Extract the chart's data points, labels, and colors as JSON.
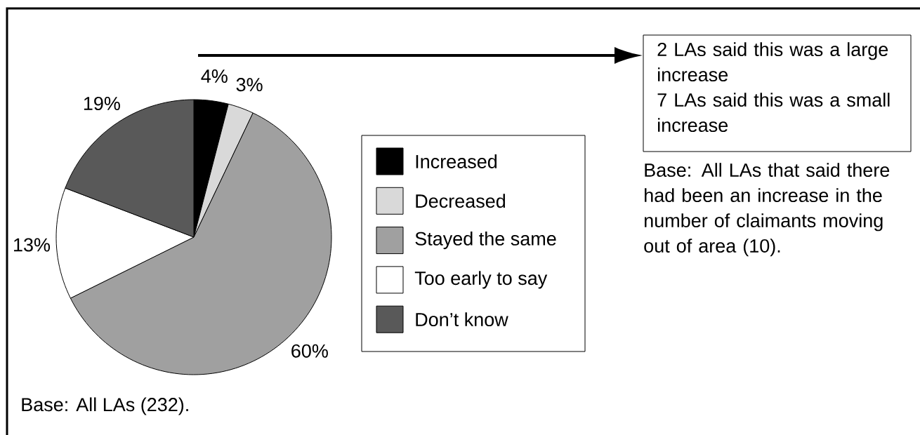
{
  "chart_data": {
    "type": "pie",
    "categories": [
      "Increased",
      "Decreased",
      "Stayed the same",
      "Too early to say",
      "Don’t know"
    ],
    "values": [
      4,
      3,
      60,
      13,
      19
    ],
    "colors": [
      "#000000",
      "#d9d9d9",
      "#a0a0a0",
      "#ffffff",
      "#595959"
    ],
    "value_labels": [
      "4%",
      "3%",
      "60%",
      "13%",
      "19%"
    ],
    "legend": "right",
    "annotations": [
      "2 LAs said this was a large increase",
      "7 LAs said this was a small increase",
      "Base: All LAs that said there had been an increase in the number of claimants moving out of area (10).",
      "Base: All LAs (232)."
    ]
  }
}
